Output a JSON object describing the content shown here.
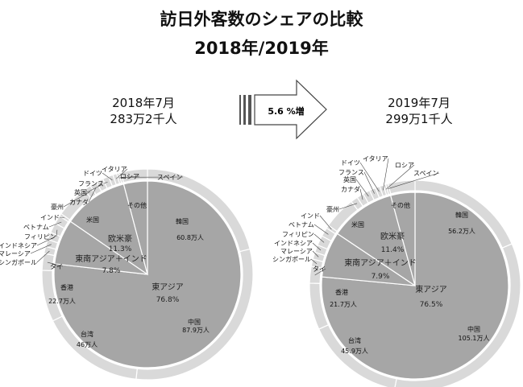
{
  "title": "訪日外客数のシェアの比較",
  "subtitle": "2018年/2019年",
  "arrow_label": "5.6 %増",
  "chart_data": [
    {
      "type": "pie",
      "period": "2018年7月",
      "total": "283万2千人",
      "inner": [
        {
          "name": "東アジア",
          "value": 76.8,
          "label": "76.8%"
        },
        {
          "name": "東南アジア＋インド",
          "value": 7.8,
          "label": "7.8%"
        },
        {
          "name": "欧米豪",
          "value": 11.3,
          "label": "11.3%"
        },
        {
          "name": "その他",
          "value": 4.1
        }
      ],
      "outer": [
        {
          "name": "韓国",
          "value": 60.8,
          "label": "60.8万人"
        },
        {
          "name": "中国",
          "value": 87.9,
          "label": "87.9万人"
        },
        {
          "name": "台湾",
          "value": 46,
          "label": "46万人"
        },
        {
          "name": "香港",
          "value": 22.7,
          "label": "22.7万人"
        },
        {
          "name": "タイ",
          "value": 7.4
        },
        {
          "name": "シンガポール",
          "value": 3.1
        },
        {
          "name": "マレーシア",
          "value": 3.2
        },
        {
          "name": "インドネシア",
          "value": 3.3
        },
        {
          "name": "フィリピン",
          "value": 4.4
        },
        {
          "name": "ベトナム",
          "value": 3.7
        },
        {
          "name": "インド",
          "value": 1.2
        },
        {
          "name": "米国",
          "value": 14.6
        },
        {
          "name": "豪州",
          "value": 3.0
        },
        {
          "name": "カナダ",
          "value": 3.1
        },
        {
          "name": "英国",
          "value": 3.1
        },
        {
          "name": "フランス",
          "value": 2.7
        },
        {
          "name": "ドイツ",
          "value": 2.0
        },
        {
          "name": "イタリア",
          "value": 1.7
        },
        {
          "name": "ロシア",
          "value": 1.0
        },
        {
          "name": "スペイン",
          "value": 1.0
        },
        {
          "name": "その他",
          "value": 11.6
        }
      ]
    },
    {
      "type": "pie",
      "period": "2019年7月",
      "total": "299万1千人",
      "inner": [
        {
          "name": "東アジア",
          "value": 76.5,
          "label": "76.5%"
        },
        {
          "name": "東南アジア＋インド",
          "value": 7.9,
          "label": "7.9%"
        },
        {
          "name": "欧米豪",
          "value": 11.4,
          "label": "11.4%"
        },
        {
          "name": "その他",
          "value": 4.2
        }
      ],
      "outer": [
        {
          "name": "韓国",
          "value": 56.2,
          "label": "56.2万人"
        },
        {
          "name": "中国",
          "value": 105.1,
          "label": "105.1万人"
        },
        {
          "name": "台湾",
          "value": 45.9,
          "label": "45.9万人"
        },
        {
          "name": "香港",
          "value": 21.7,
          "label": "21.7万人"
        },
        {
          "name": "タイ",
          "value": 7.8
        },
        {
          "name": "シンガポール",
          "value": 3.4
        },
        {
          "name": "マレーシア",
          "value": 3.3
        },
        {
          "name": "インドネシア",
          "value": 3.5
        },
        {
          "name": "フィリピン",
          "value": 4.6
        },
        {
          "name": "ベトナム",
          "value": 4.2
        },
        {
          "name": "インド",
          "value": 1.5
        },
        {
          "name": "米国",
          "value": 15.2
        },
        {
          "name": "豪州",
          "value": 3.3
        },
        {
          "name": "カナダ",
          "value": 3.2
        },
        {
          "name": "英国",
          "value": 3.3
        },
        {
          "name": "フランス",
          "value": 2.9
        },
        {
          "name": "ドイツ",
          "value": 2.1
        },
        {
          "name": "イタリア",
          "value": 1.8
        },
        {
          "name": "ロシア",
          "value": 1.1
        },
        {
          "name": "スペイン",
          "value": 1.1
        },
        {
          "name": "その他",
          "value": 12.5
        }
      ]
    }
  ],
  "colors": {
    "inner_fill": "#a6a6a6",
    "outer_fill": "#d9d9d9",
    "stroke": "#ffffff",
    "leader": "#444444",
    "arrow_fill": "#ffffff",
    "arrow_stroke": "#444444"
  }
}
